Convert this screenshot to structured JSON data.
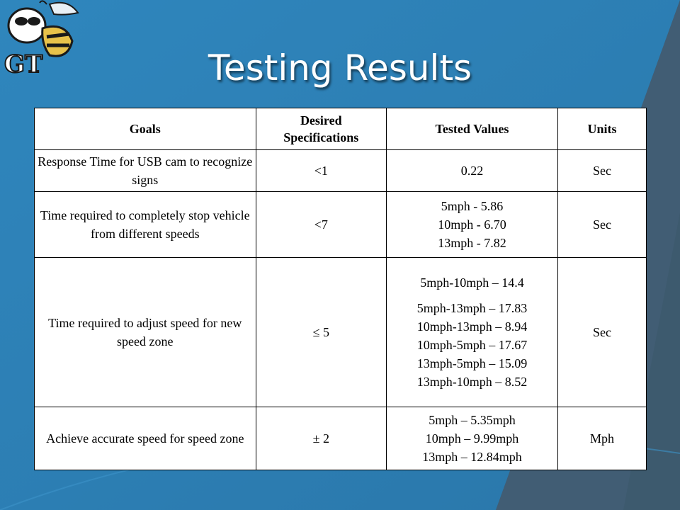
{
  "slide": {
    "title": "Testing Results",
    "logo_text": "GT",
    "colors": {
      "background": "#2e7fb3",
      "dark_band": "#3d5a6e",
      "title": "#ffffff",
      "table_bg": "#ffffff"
    }
  },
  "table": {
    "headers": {
      "goals": "Goals",
      "desired_line1": "Desired",
      "desired_line2": "Specifications",
      "tested": "Tested Values",
      "units": "Units"
    },
    "rows": [
      {
        "goal": "Response Time for USB cam to recognize signs",
        "desired": "<1",
        "tested": [
          "0.22"
        ],
        "units": "Sec"
      },
      {
        "goal": "Time required to completely stop vehicle from different speeds",
        "desired": "<7",
        "tested": [
          "5mph - 5.86",
          "10mph - 6.70",
          "13mph - 7.82"
        ],
        "units": "Sec"
      },
      {
        "goal": "Time required to adjust speed for new speed zone",
        "desired": "≤ 5",
        "tested": [
          "5mph-10mph – 14.4",
          "5mph-13mph – 17.83",
          "10mph-13mph – 8.94",
          "10mph-5mph – 17.67",
          "13mph-5mph – 15.09",
          "13mph-10mph – 8.52"
        ],
        "units": "Sec"
      },
      {
        "goal": "Achieve accurate speed for speed zone",
        "desired": "± 2",
        "tested": [
          "5mph – 5.35mph",
          "10mph – 9.99mph",
          "13mph – 12.84mph"
        ],
        "units": "Mph"
      }
    ]
  }
}
